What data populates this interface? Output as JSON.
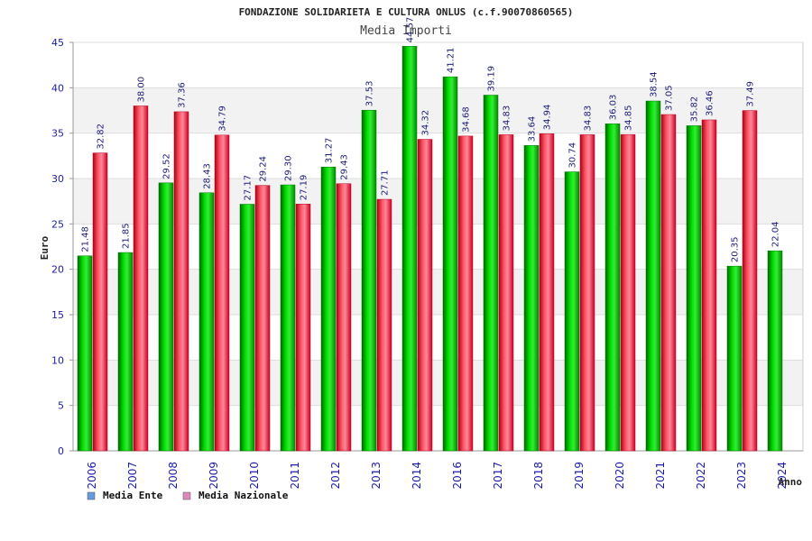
{
  "chart_data": {
    "type": "bar",
    "title": "FONDAZIONE SOLIDARIETA E CULTURA ONLUS (c.f.90070860565)",
    "subtitle": "Media Importi",
    "xlabel": "Anno",
    "ylabel": "Euro",
    "ylim": [
      0,
      45
    ],
    "yticks": [
      0,
      5,
      10,
      15,
      20,
      25,
      30,
      35,
      40,
      45
    ],
    "grid": true,
    "legend_position": "bottom-left",
    "categories": [
      "2006",
      "2007",
      "2008",
      "2009",
      "2010",
      "2011",
      "2012",
      "2013",
      "2014",
      "2016",
      "2017",
      "2018",
      "2019",
      "2020",
      "2021",
      "2022",
      "2023",
      "2024"
    ],
    "series": [
      {
        "name": "Media Ente",
        "legend_color": "#6699dd",
        "color": "#00bb00",
        "values": [
          21.48,
          21.85,
          29.52,
          28.43,
          27.17,
          29.3,
          31.27,
          37.53,
          44.57,
          41.21,
          39.19,
          33.64,
          30.74,
          36.03,
          38.54,
          35.82,
          20.35,
          22.04
        ],
        "labels": [
          "21.48",
          "21.85",
          "29.52",
          "28.43",
          "27.17",
          "29.30",
          "31.27",
          "37.53",
          "44.57",
          "41.21",
          "39.19",
          "33.64",
          "30.74",
          "36.03",
          "38.54",
          "35.82",
          "20.35",
          "22.04"
        ]
      },
      {
        "name": "Media Nazionale",
        "legend_color": "#dd88bb",
        "color": "#ee2233",
        "values": [
          32.82,
          38.0,
          37.36,
          34.79,
          29.24,
          27.19,
          29.43,
          27.71,
          34.32,
          34.68,
          34.83,
          34.94,
          34.83,
          34.85,
          37.05,
          36.46,
          37.49,
          null
        ],
        "labels": [
          "32.82",
          "38.00",
          "37.36",
          "34.79",
          "29.24",
          "27.19",
          "29.43",
          "27.71",
          "34.32",
          "34.68",
          "34.83",
          "34.94",
          "34.83",
          "34.85",
          "37.05",
          "36.46",
          "37.49",
          ""
        ]
      }
    ]
  }
}
